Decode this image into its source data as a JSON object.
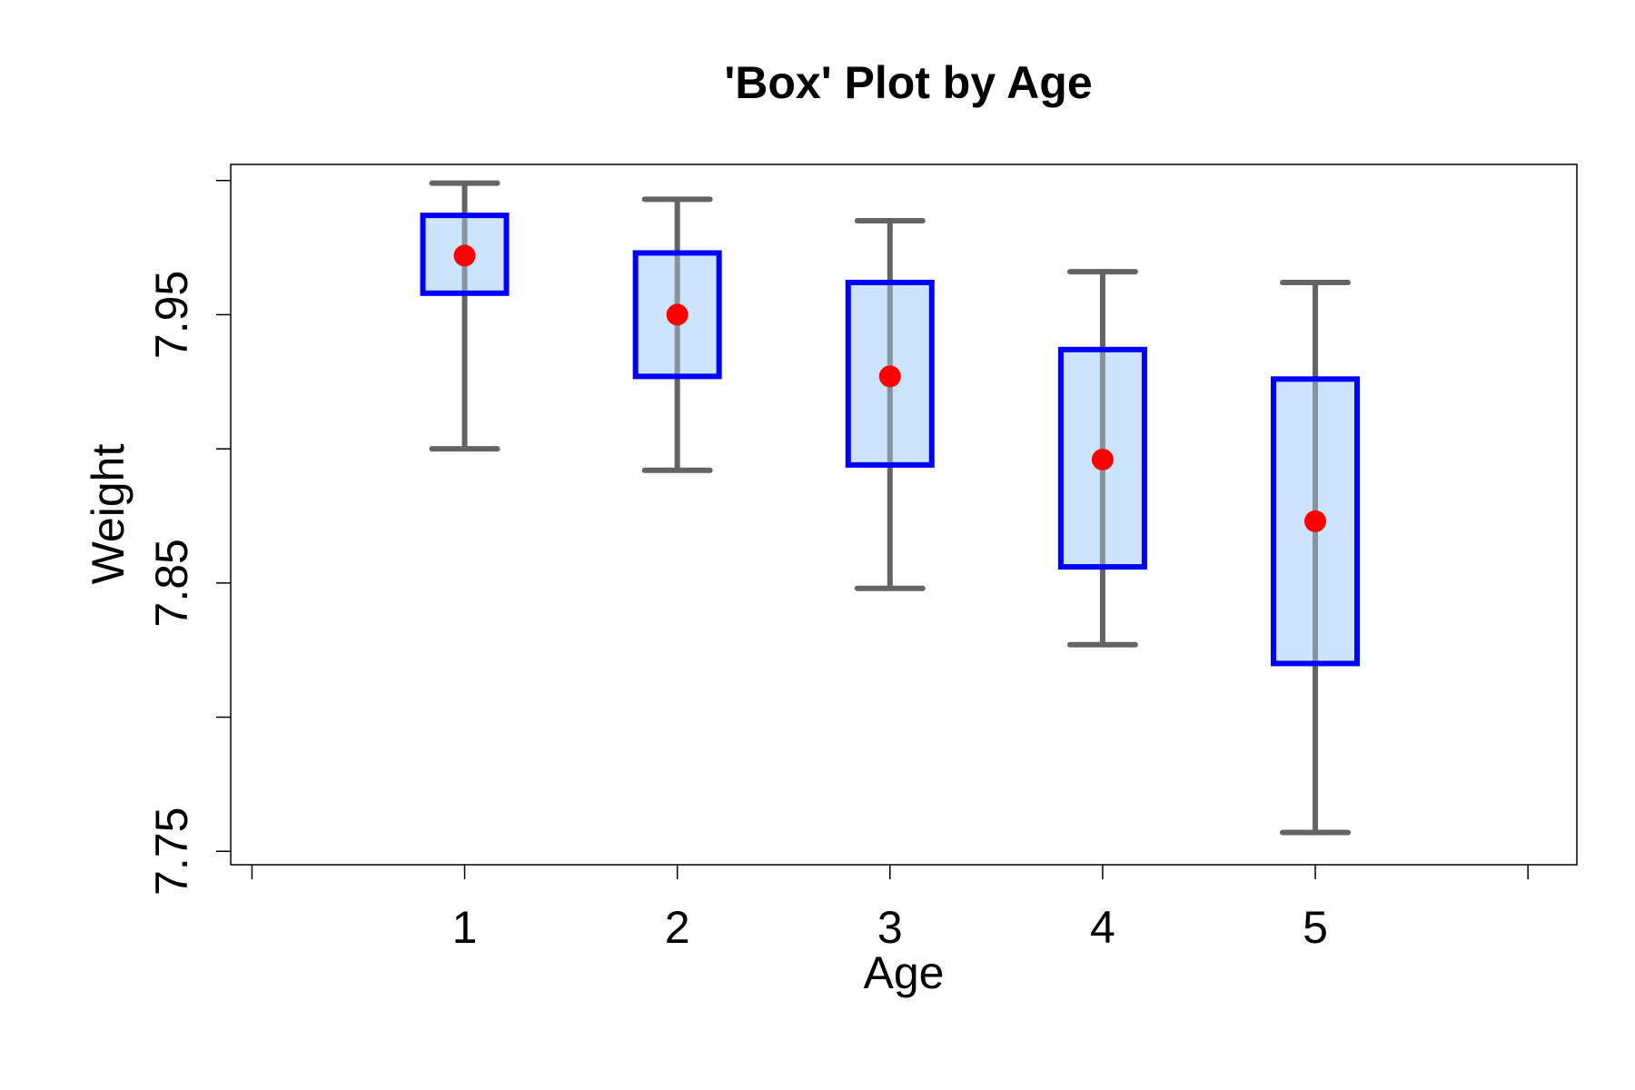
{
  "chart_data": {
    "type": "box",
    "title": "'Box' Plot by Age",
    "xlabel": "Age",
    "ylabel": "Weight",
    "categories": [
      "1",
      "2",
      "3",
      "4",
      "5"
    ],
    "x_axis_ticks": [
      0,
      1,
      2,
      3,
      4,
      5,
      6
    ],
    "xlim": [
      -0.1,
      6.23
    ],
    "y_ticks": [
      7.75,
      7.8,
      7.85,
      7.9,
      7.95,
      8.0
    ],
    "y_tick_labels": [
      "7.75",
      "",
      "7.85",
      "",
      "7.95",
      ""
    ],
    "ylim": [
      7.745,
      8.006
    ],
    "grid": false,
    "boxes": [
      {
        "category": "1",
        "whisker_low": 7.9,
        "q1": 7.958,
        "center": 7.972,
        "q3": 7.987,
        "whisker_high": 7.999
      },
      {
        "category": "2",
        "whisker_low": 7.892,
        "q1": 7.927,
        "center": 7.95,
        "q3": 7.973,
        "whisker_high": 7.993
      },
      {
        "category": "3",
        "whisker_low": 7.848,
        "q1": 7.894,
        "center": 7.927,
        "q3": 7.962,
        "whisker_high": 7.985
      },
      {
        "category": "4",
        "whisker_low": 7.827,
        "q1": 7.856,
        "center": 7.896,
        "q3": 7.937,
        "whisker_high": 7.966
      },
      {
        "category": "5",
        "whisker_low": 7.757,
        "q1": 7.82,
        "center": 7.873,
        "q3": 7.926,
        "whisker_high": 7.962
      }
    ],
    "colors": {
      "box_fill": "#c2dffb",
      "box_stroke": "#0000ff",
      "whisker": "#646464",
      "center_point": "#ff0000",
      "axis": "#000000"
    }
  }
}
